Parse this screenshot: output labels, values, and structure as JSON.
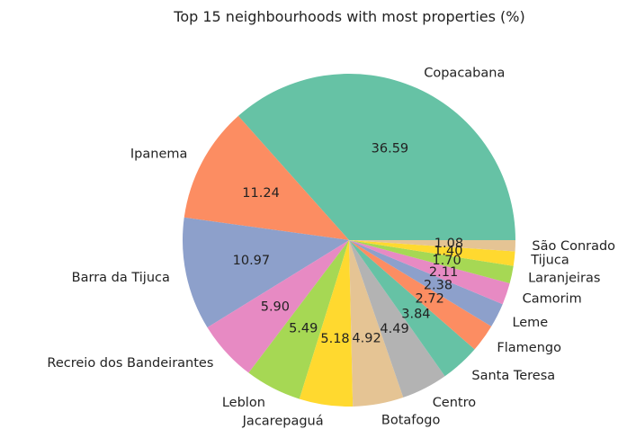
{
  "chart_data": {
    "type": "pie",
    "title": "Top 15 neighbourhoods with most properties (%)",
    "start_angle_deg": 0,
    "direction": "counterclockwise",
    "autopct_format": "%.2f",
    "slices": [
      {
        "label": "Copacabana",
        "value": 36.59,
        "color": "#66c2a5"
      },
      {
        "label": "Ipanema",
        "value": 11.24,
        "color": "#fc8d62"
      },
      {
        "label": "Barra da Tijuca",
        "value": 10.97,
        "color": "#8da0cb"
      },
      {
        "label": "Recreio dos Bandeirantes",
        "value": 5.9,
        "color": "#e78ac3"
      },
      {
        "label": "Leblon",
        "value": 5.49,
        "color": "#a6d854"
      },
      {
        "label": "Jacarepaguá",
        "value": 5.18,
        "color": "#ffd92f"
      },
      {
        "label": "Botafogo",
        "value": 4.92,
        "color": "#e5c494"
      },
      {
        "label": "Centro",
        "value": 4.49,
        "color": "#b3b3b3"
      },
      {
        "label": "Santa Teresa",
        "value": 3.84,
        "color": "#66c2a5"
      },
      {
        "label": "Flamengo",
        "value": 2.72,
        "color": "#fc8d62"
      },
      {
        "label": "Leme",
        "value": 2.38,
        "color": "#8da0cb"
      },
      {
        "label": "Camorim",
        "value": 2.11,
        "color": "#e78ac3"
      },
      {
        "label": "Laranjeiras",
        "value": 1.7,
        "color": "#a6d854"
      },
      {
        "label": "Tijuca",
        "value": 1.4,
        "color": "#ffd92f"
      },
      {
        "label": "São Conrado",
        "value": 1.08,
        "color": "#e5c494"
      }
    ]
  }
}
